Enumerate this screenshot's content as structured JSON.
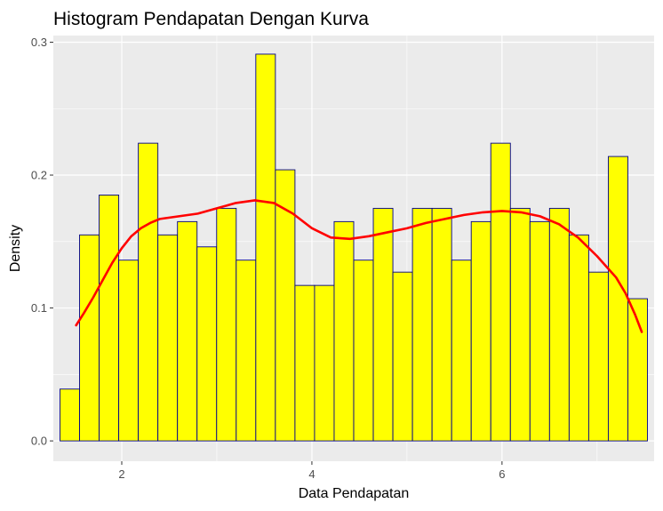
{
  "chart_data": {
    "type": "histogram",
    "title": "Histogram Pendapatan Dengan Kurva",
    "xlabel": "Data Pendapatan",
    "ylabel": "Density",
    "xlim": [
      1.28,
      7.6
    ],
    "ylim": [
      -0.0153,
      0.305
    ],
    "x_ticks": [
      2,
      4,
      6
    ],
    "x_tick_labels": [
      "2",
      "4",
      "6"
    ],
    "y_ticks": [
      0.0,
      0.1,
      0.2,
      0.3
    ],
    "y_tick_labels": [
      "0.0",
      "0.1",
      "0.2",
      "0.3"
    ],
    "grid": true,
    "legend": "none",
    "bin_width": 0.206,
    "bins_start": 1.35,
    "densities": [
      0.039,
      0.155,
      0.185,
      0.136,
      0.224,
      0.155,
      0.165,
      0.146,
      0.175,
      0.136,
      0.291,
      0.204,
      0.117,
      0.117,
      0.165,
      0.136,
      0.175,
      0.127,
      0.175,
      0.175,
      0.136,
      0.165,
      0.224,
      0.175,
      0.165,
      0.175,
      0.155,
      0.127,
      0.214,
      0.107
    ],
    "density_curve": {
      "x": [
        1.52,
        1.6,
        1.7,
        1.8,
        1.9,
        2.0,
        2.1,
        2.2,
        2.3,
        2.4,
        2.6,
        2.8,
        3.0,
        3.2,
        3.4,
        3.6,
        3.8,
        4.0,
        4.2,
        4.4,
        4.6,
        4.8,
        5.0,
        5.2,
        5.4,
        5.6,
        5.8,
        6.0,
        6.2,
        6.4,
        6.6,
        6.8,
        7.0,
        7.1,
        7.2,
        7.3,
        7.4,
        7.47
      ],
      "y": [
        0.087,
        0.096,
        0.108,
        0.121,
        0.134,
        0.145,
        0.154,
        0.16,
        0.164,
        0.167,
        0.169,
        0.171,
        0.175,
        0.179,
        0.181,
        0.179,
        0.171,
        0.16,
        0.153,
        0.152,
        0.154,
        0.157,
        0.16,
        0.164,
        0.167,
        0.17,
        0.172,
        0.173,
        0.172,
        0.169,
        0.163,
        0.153,
        0.139,
        0.131,
        0.123,
        0.111,
        0.095,
        0.082
      ],
      "color": "#ff0000"
    },
    "colors": {
      "bar_fill": "#ffff00",
      "bar_stroke": "#00008b",
      "panel_bg": "#ebebeb",
      "grid": "#ffffff",
      "curve": "#ff0000"
    }
  }
}
